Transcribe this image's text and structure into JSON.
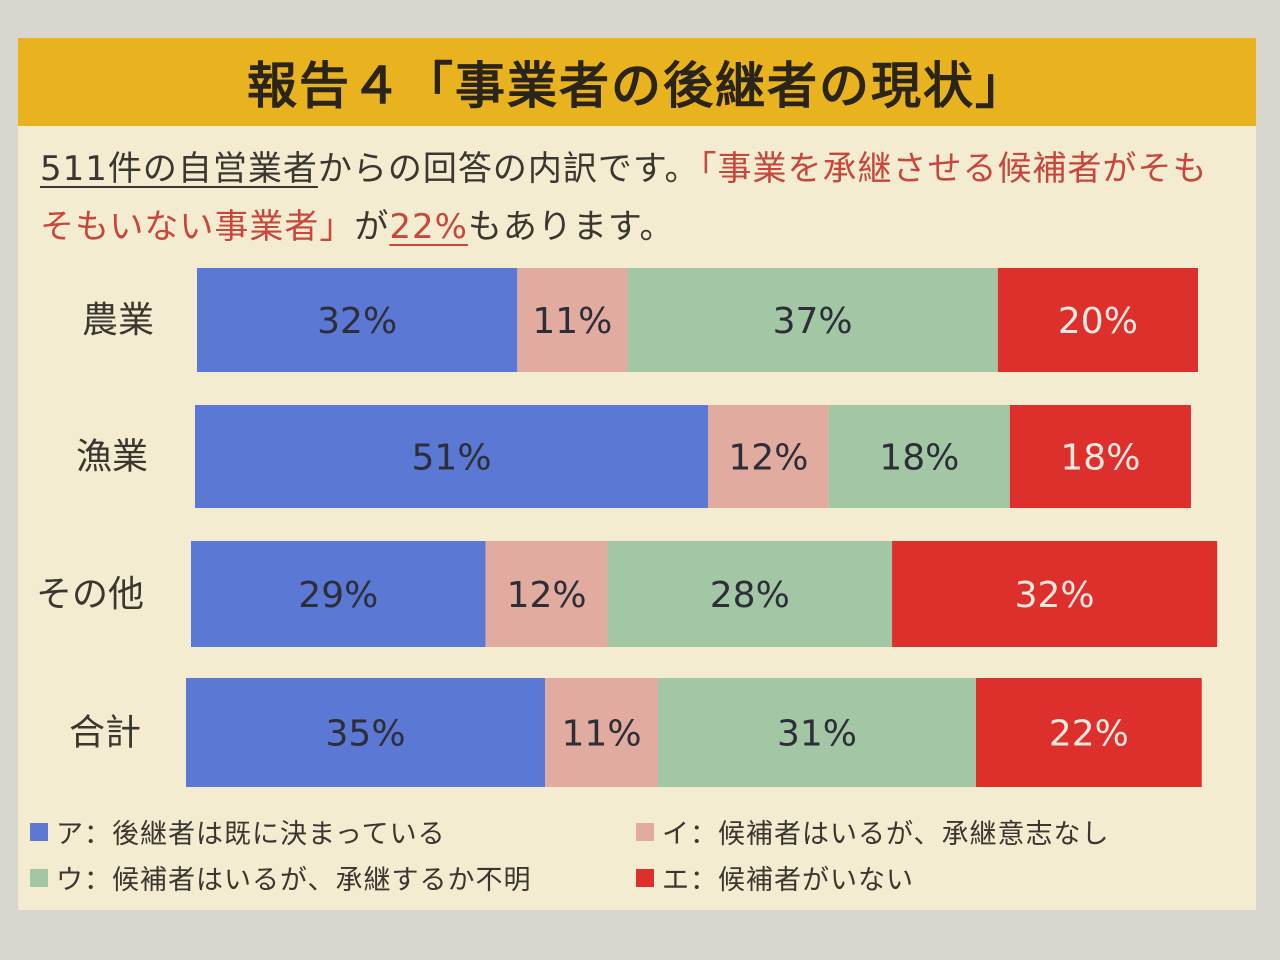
{
  "title": "報告４「事業者の後継者の現状」",
  "intro": {
    "part1": "511件の自営業者",
    "part2": "からの回答の内訳です。",
    "part3": "「事業を承継させる候補者がそもそもいない事業者」",
    "part4": "が",
    "part5": "22%",
    "part6": "もあります。"
  },
  "colors": {
    "title_bg": "#e9b21f",
    "board_bg": "#f4ecd0",
    "ア": "#5b78d4",
    "イ": "#e2aba0",
    "ウ": "#a3c7a5",
    "エ": "#dd2f2c"
  },
  "chart_data": {
    "type": "bar",
    "orientation": "horizontal",
    "stacked": true,
    "percent": true,
    "categories": [
      "農業",
      "漁業",
      "その他",
      "合計"
    ],
    "series": [
      {
        "name": "ア：後継者は既に決まっている",
        "values": [
          32,
          51,
          29,
          35
        ],
        "labels": [
          "32%",
          "51%",
          "29%",
          "35%"
        ]
      },
      {
        "name": "イ：候補者はいるが、承継意志なし",
        "values": [
          11,
          12,
          12,
          11
        ],
        "labels": [
          "11%",
          "12%",
          "12%",
          "11%"
        ]
      },
      {
        "name": "ウ：候補者はいるが、承継するか不明",
        "values": [
          37,
          18,
          28,
          31
        ],
        "labels": [
          "37%",
          "18%",
          "28%",
          "31%"
        ]
      },
      {
        "name": "エ：候補者がいない",
        "values": [
          20,
          18,
          32,
          22
        ],
        "labels": [
          "20%",
          "18%",
          "32%",
          "22%"
        ]
      }
    ],
    "xlim": [
      0,
      100
    ],
    "legend_position": "bottom"
  }
}
